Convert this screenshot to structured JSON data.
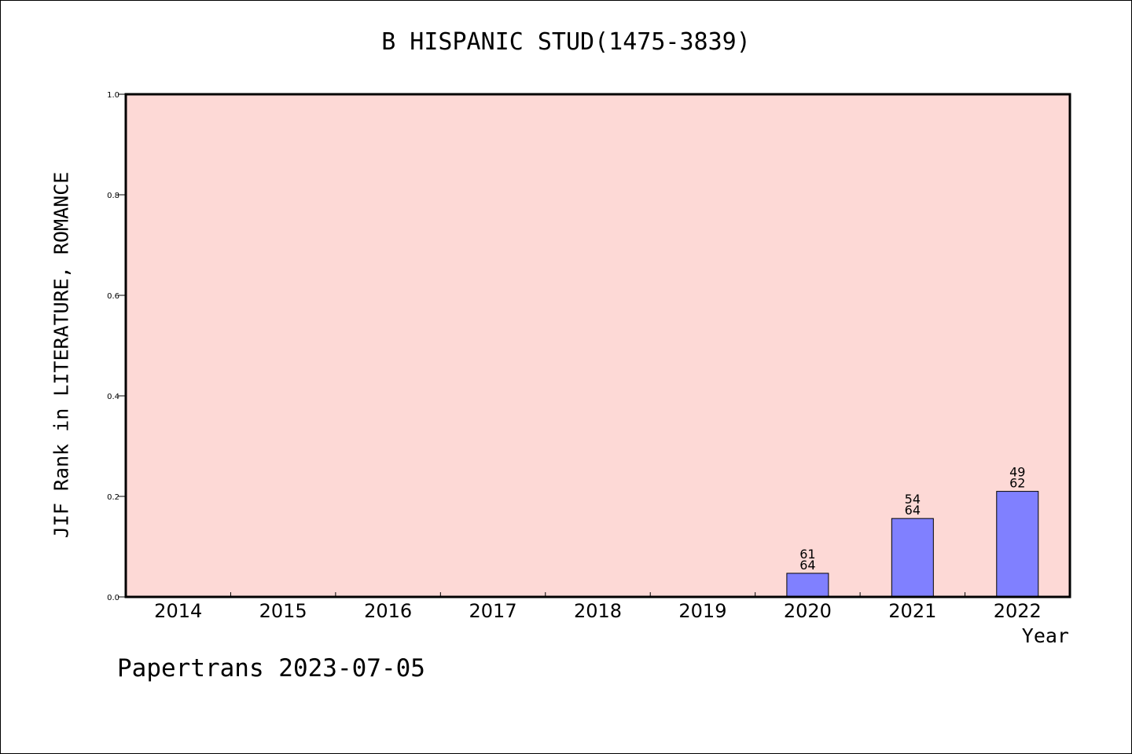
{
  "chart_data": {
    "type": "bar",
    "title": "B HISPANIC STUD(1475-3839)",
    "ylabel": "JIF Rank in LITERATURE, ROMANCE",
    "xlabel": "Year",
    "categories": [
      "2014",
      "2015",
      "2016",
      "2017",
      "2018",
      "2019",
      "2020",
      "2021",
      "2022"
    ],
    "values": [
      null,
      null,
      null,
      null,
      null,
      null,
      0.047,
      0.156,
      0.21
    ],
    "bar_labels": [
      null,
      null,
      null,
      null,
      null,
      null,
      {
        "rank": "61",
        "total": "64"
      },
      {
        "rank": "54",
        "total": "64"
      },
      {
        "rank": "49",
        "total": "62"
      }
    ],
    "ylim": [
      0,
      1
    ],
    "yticks": [
      "0.0",
      "0.2",
      "0.4",
      "0.6",
      "0.8",
      "1.0"
    ],
    "grid": false,
    "colors": {
      "plot_background": "#fdd9d6",
      "bar_fill": "#8080ff",
      "bar_stroke": "#000000",
      "axis": "#000000"
    }
  },
  "footer": "Papertrans 2023-07-05"
}
